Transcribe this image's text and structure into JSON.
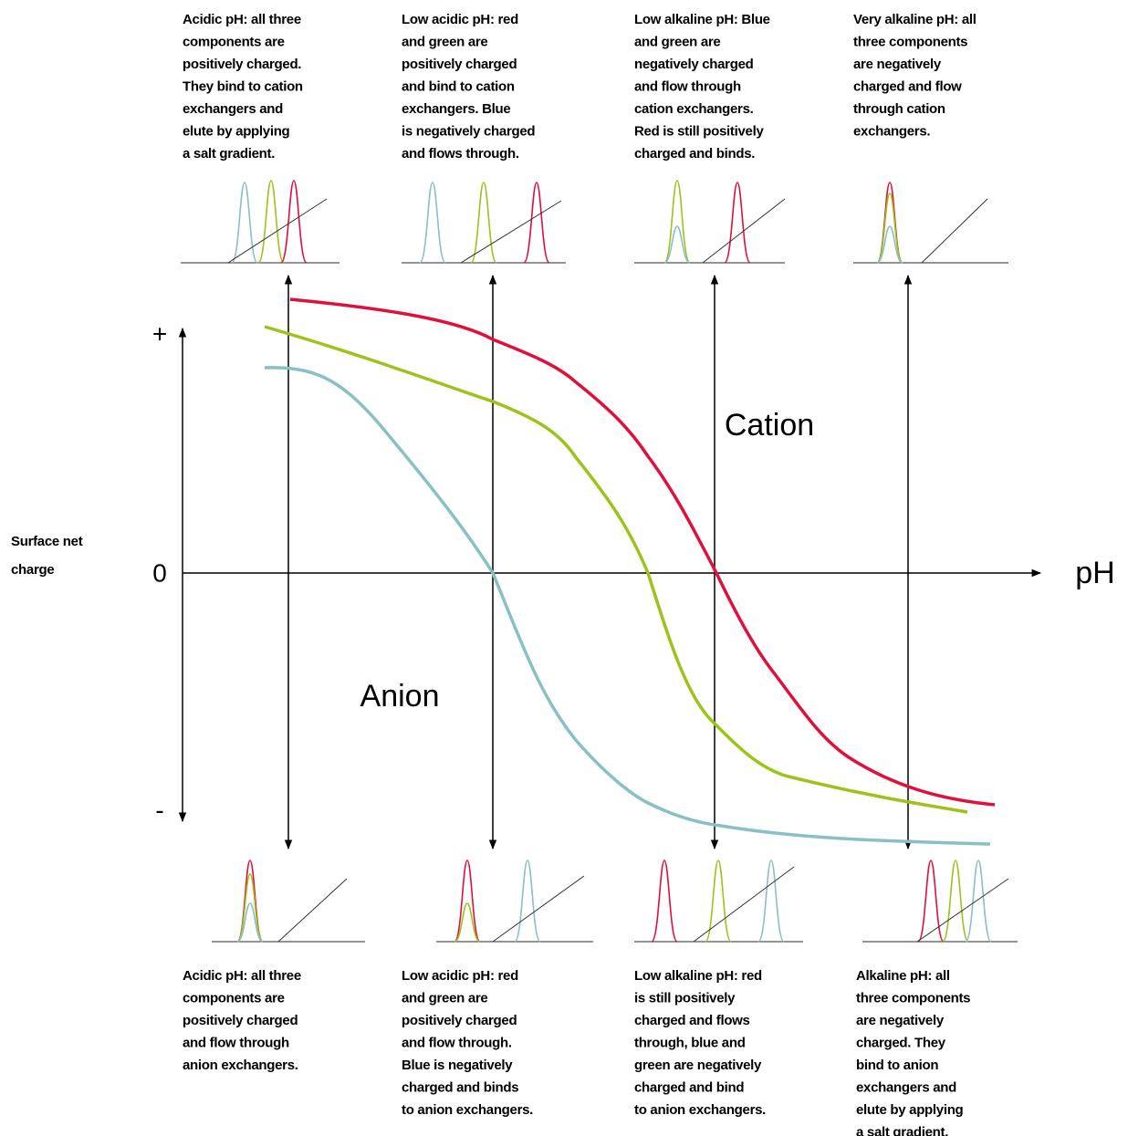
{
  "top_captions": [
    {
      "lines": [
        "Acidic pH: all three",
        "components are",
        "positively charged.",
        "They bind to cation",
        "exchangers and",
        "elute by applying",
        "a salt gradient."
      ]
    },
    {
      "lines": [
        "Low acidic pH: red",
        "and green are",
        "positively charged",
        "and bind to cation",
        "exchangers. Blue",
        "is negatively charged",
        "and flows through."
      ]
    },
    {
      "lines": [
        "Low alkaline pH: Blue",
        "and green are",
        "negatively charged",
        "and flow through",
        "cation exchangers.",
        "Red is still positively",
        "charged and binds."
      ]
    },
    {
      "lines": [
        "Very alkaline pH: all",
        "three components",
        "are negatively",
        "charged and flow",
        "through cation",
        "exchangers."
      ]
    }
  ],
  "bottom_captions": [
    {
      "lines": [
        "Acidic pH: all three",
        "components are",
        "positively charged",
        "and flow through",
        "anion exchangers."
      ]
    },
    {
      "lines": [
        "Low acidic pH: red",
        "and green are",
        "positively charged",
        "and flow through.",
        "Blue is negatively",
        "charged and binds",
        "to anion exchangers."
      ]
    },
    {
      "lines": [
        "Low alkaline pH: red",
        "is still positively",
        "charged and flows",
        "through, blue and",
        "green are negatively",
        "charged and bind",
        "to anion exchangers."
      ]
    },
    {
      "lines": [
        "Alkaline pH: all",
        "three components",
        "are negatively",
        "charged. They",
        "bind to anion",
        "exchangers and",
        "elute by applying",
        "a salt gradient."
      ]
    }
  ],
  "axis": {
    "y_label": [
      "Surface net",
      "charge"
    ],
    "plus": "+",
    "zero": "0",
    "minus": "-",
    "x_label": "pH"
  },
  "regions": {
    "cation": "Cation",
    "anion": "Anion"
  }
}
